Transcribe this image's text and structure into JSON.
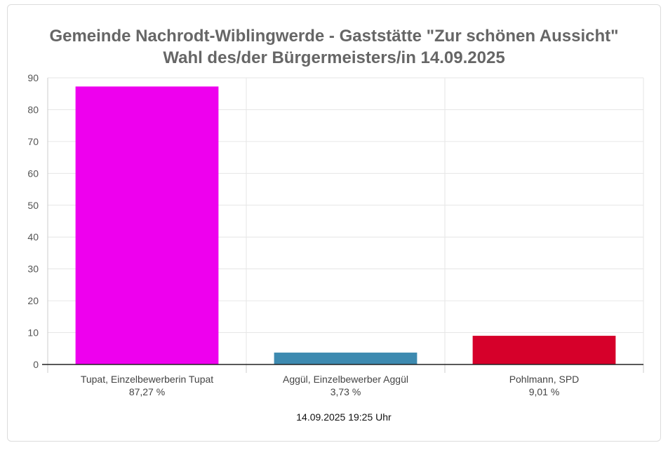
{
  "chart_data": {
    "type": "bar",
    "title": "Gemeinde Nachrodt-Wiblingwerde - Gaststätte \"Zur schönen Aussicht\"",
    "subtitle": "Wahl des/der Bürgermeisters/in 14.09.2025",
    "categories": [
      "Tupat, Einzelbewerberin Tupat",
      "Aggül, Einzelbewerber Aggül",
      "Pohlmann, SPD"
    ],
    "value_labels": [
      "87,27 %",
      "3,73 %",
      "9,01 %"
    ],
    "values": [
      87.27,
      3.73,
      9.01
    ],
    "colors": [
      "#ee00ee",
      "#3d8ab0",
      "#d6002a"
    ],
    "ylim": [
      0,
      90
    ],
    "yticks": [
      0,
      10,
      20,
      30,
      40,
      50,
      60,
      70,
      80,
      90
    ],
    "grid": true,
    "xlabel": "",
    "ylabel": ""
  },
  "footer": "14.09.2025 19:25 Uhr"
}
